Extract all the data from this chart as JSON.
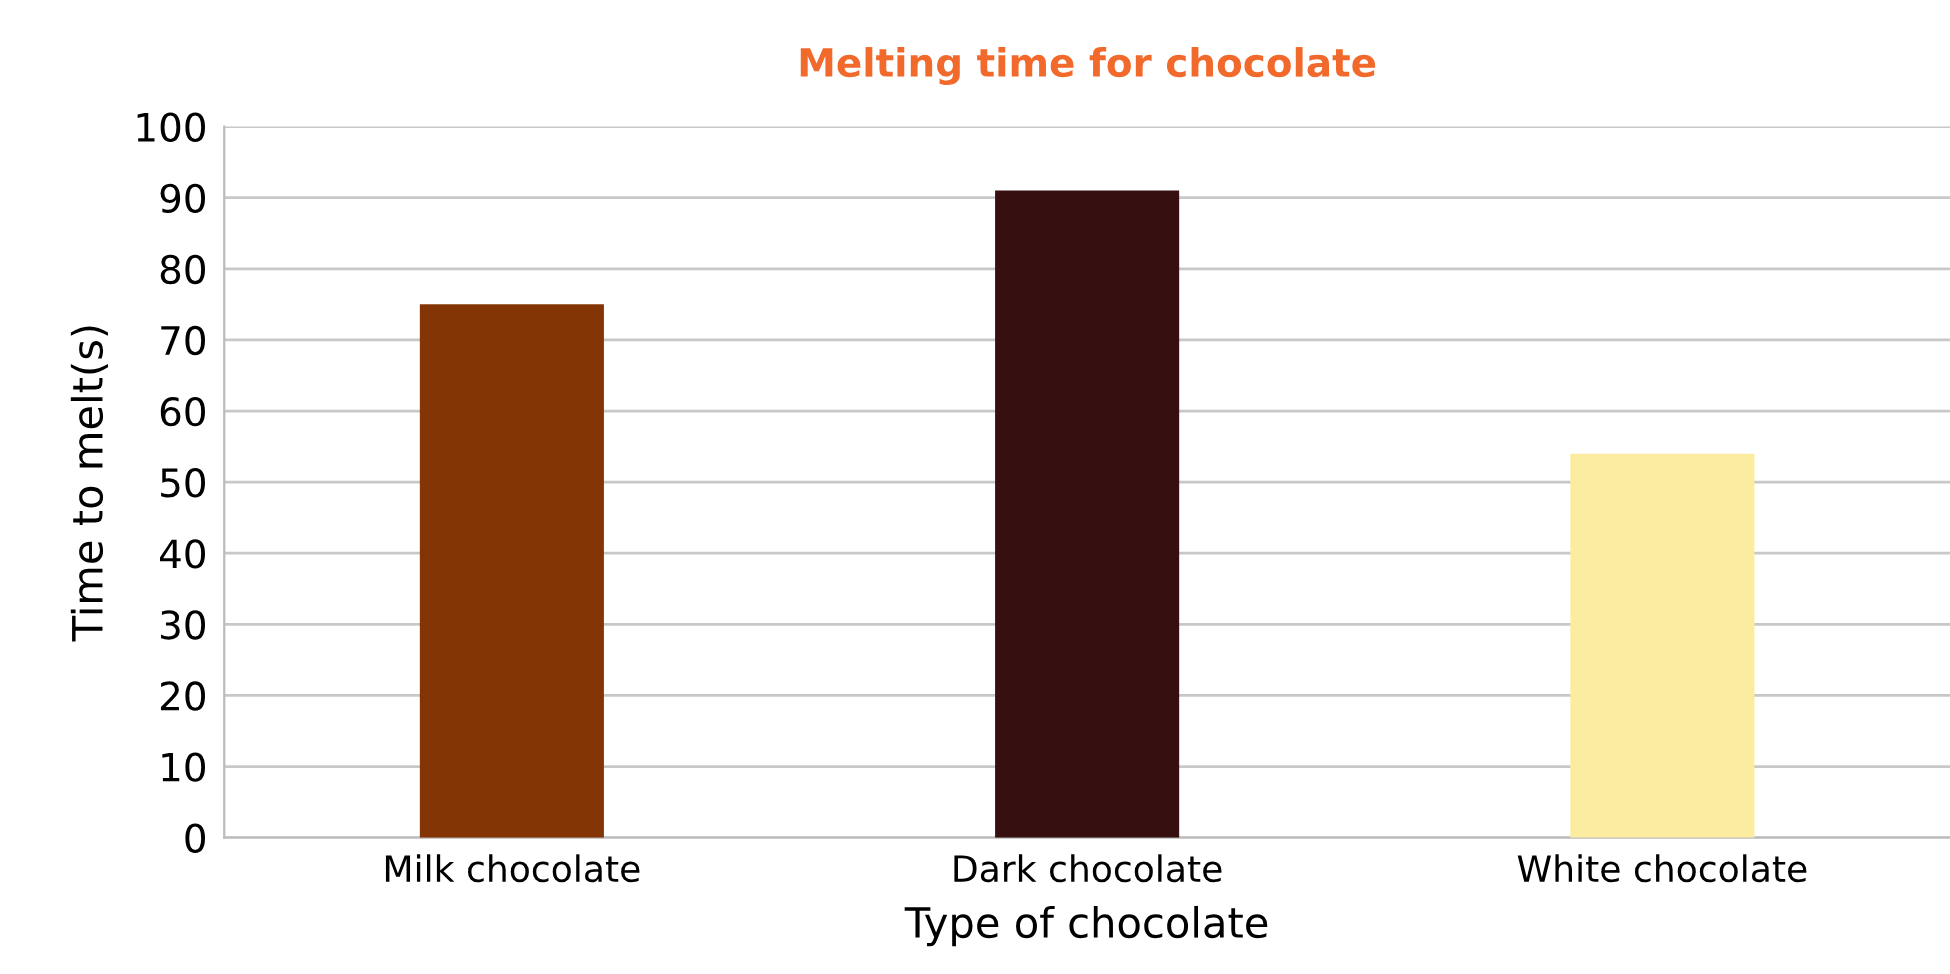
{
  "chart_data": {
    "type": "bar",
    "title": "Melting time for chocolate",
    "xlabel": "Type of chocolate",
    "ylabel": "Time to melt(s)",
    "categories": [
      "Milk chocolate",
      "Dark chocolate",
      "White chocolate"
    ],
    "values": [
      75,
      91,
      54
    ],
    "colors": [
      "#833505",
      "#360f10",
      "#fcec9f"
    ],
    "ylim": [
      0,
      100
    ],
    "yticks": [
      0,
      10,
      20,
      30,
      40,
      50,
      60,
      70,
      80,
      90,
      100
    ],
    "grid": "y",
    "legend": false
  }
}
